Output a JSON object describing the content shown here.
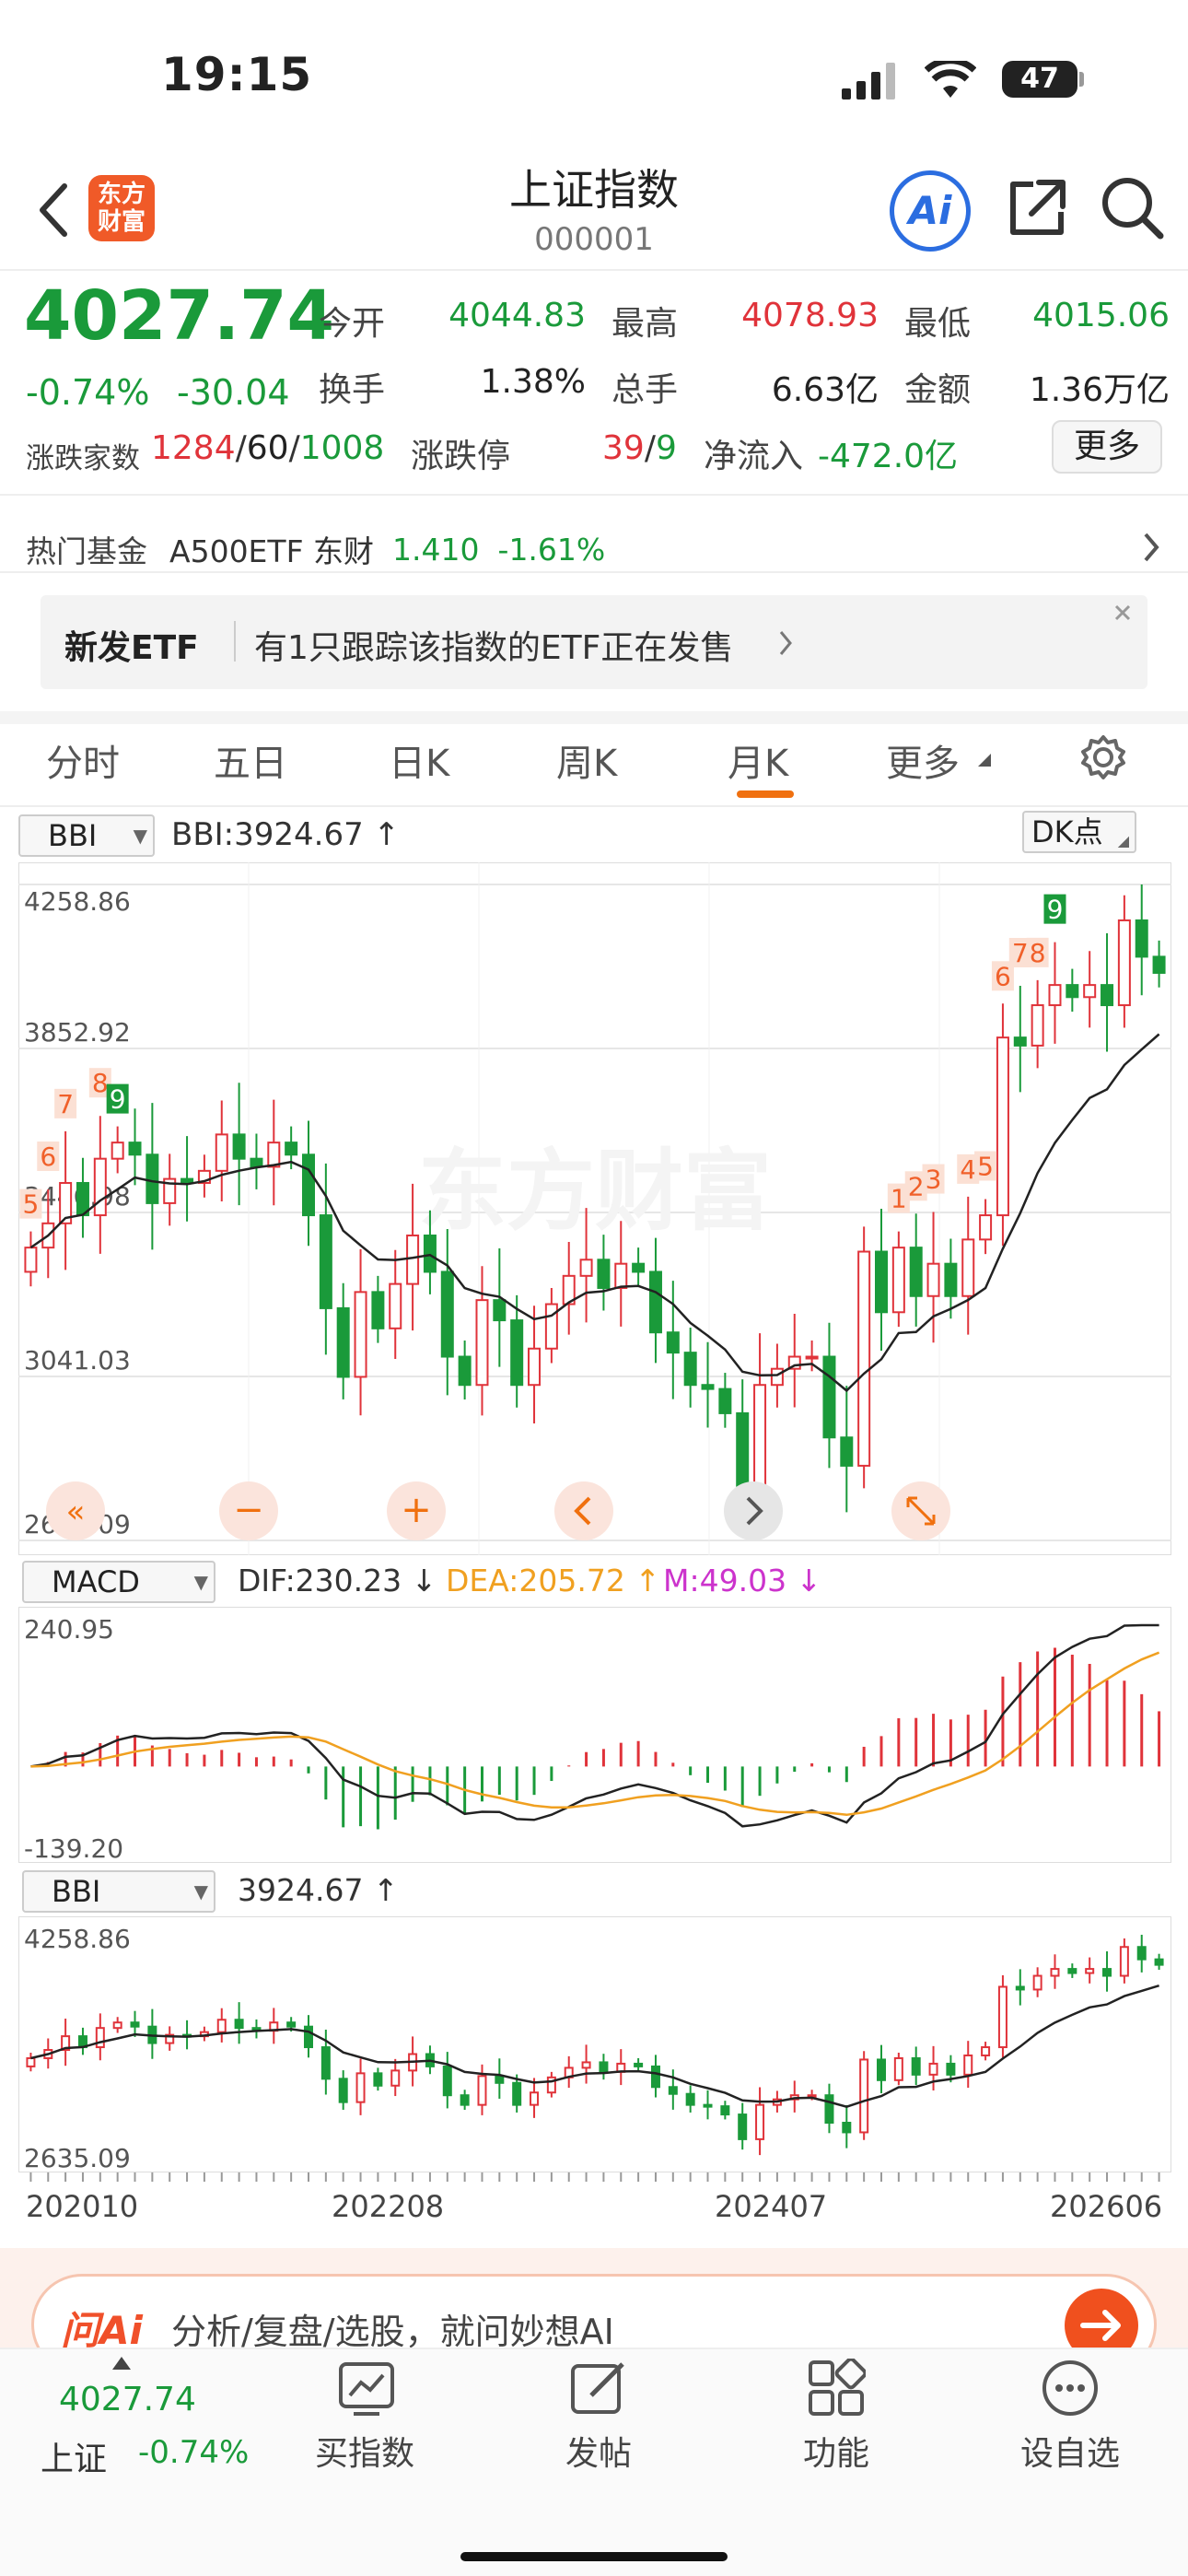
{
  "status_bar": {
    "time": "19:15",
    "battery": "47"
  },
  "header": {
    "back_icon": "chevron-left-icon",
    "logo_text": "东方财富",
    "title": "上证指数",
    "code": "000001",
    "ai_label": "Ai",
    "share_icon": "share-icon",
    "search_icon": "search-icon"
  },
  "quote": {
    "price": "4027.74",
    "change_pct": "-0.74%",
    "change": "-30.04",
    "open_label": "今开",
    "open": "4044.83",
    "high_label": "最高",
    "high": "4078.93",
    "low_label": "最低",
    "low": "4015.06",
    "turnover_label": "换手",
    "turnover": "1.38%",
    "volume_label": "总手",
    "volume": "6.63亿",
    "amount_label": "金额",
    "amount": "1.36万亿",
    "breadth_label": "涨跌家数",
    "up_count": "1284",
    "flat_count": "60",
    "down_count": "1008",
    "limit_label": "涨跌停",
    "limit_up": "39",
    "limit_down": "9",
    "inflow_label": "净流入",
    "inflow": "-472.0亿",
    "more_label": "更多"
  },
  "hot_fund": {
    "label": "热门基金",
    "name": "A500ETF 东财",
    "price": "1.410",
    "change": "-1.61%"
  },
  "etf_banner": {
    "tag": "新发ETF",
    "text": "有1只跟踪该指数的ETF正在发售"
  },
  "tabs": [
    "分时",
    "五日",
    "日K",
    "周K",
    "月K",
    "更多"
  ],
  "active_tab": "月K",
  "main_chart": {
    "indicator_select": "BBI",
    "indicator_text": "BBI:3924.67",
    "dk_label": "DK点",
    "axis_labels": [
      "4258.86",
      "3852.92",
      "3446.98",
      "3041.03",
      "2635.09"
    ],
    "watermark": "东方财富",
    "markers": [
      "5",
      "6",
      "7",
      "8",
      "9",
      "1",
      "2",
      "3",
      "4",
      "5",
      "6",
      "7",
      "8",
      "9"
    ]
  },
  "macd": {
    "select": "MACD",
    "dif": "DIF:230.23",
    "dea": "DEA:205.72",
    "m": "M:49.03",
    "top": "240.95",
    "bottom": "-139.20"
  },
  "mini_chart": {
    "select": "BBI",
    "value": "3924.67",
    "top": "4258.86",
    "bottom": "2635.09",
    "dates": [
      "202010",
      "202208",
      "202407",
      "202606"
    ]
  },
  "ask_bar": {
    "brand": "问Ai",
    "placeholder": "分析/复盘/选股，就问妙想AI"
  },
  "bottom_nav": {
    "index_price": "4027.74",
    "index_name": "上证",
    "index_change": "-0.74%",
    "items": [
      "买指数",
      "发帖",
      "功能",
      "设自选"
    ]
  },
  "colors": {
    "up": "#e0333a",
    "down": "#1a9a3a",
    "accent": "#f0700f",
    "dea": "#f0a020",
    "m": "#cc33cc"
  },
  "chart_data": {
    "type": "candlestick",
    "title": "上证指数 月K",
    "ylim": [
      2635.09,
      4258.86
    ],
    "closes": [
      3360,
      3420,
      3520,
      3440,
      3580,
      3620,
      3590,
      3470,
      3530,
      3520,
      3550,
      3640,
      3580,
      3560,
      3620,
      3590,
      3440,
      3210,
      3040,
      3250,
      3160,
      3270,
      3390,
      3300,
      3090,
      3020,
      3230,
      3180,
      3020,
      3110,
      3220,
      3290,
      3330,
      3260,
      3320,
      3300,
      3150,
      3100,
      3020,
      3010,
      2950,
      2770,
      3020,
      3060,
      3090,
      3090,
      2890,
      2820,
      3350,
      3200,
      3360,
      3240,
      3320,
      3240,
      3380,
      3440,
      3880,
      3860,
      3960,
      4010,
      3980,
      4010,
      3960,
      4170,
      4080,
      4040
    ]
  }
}
